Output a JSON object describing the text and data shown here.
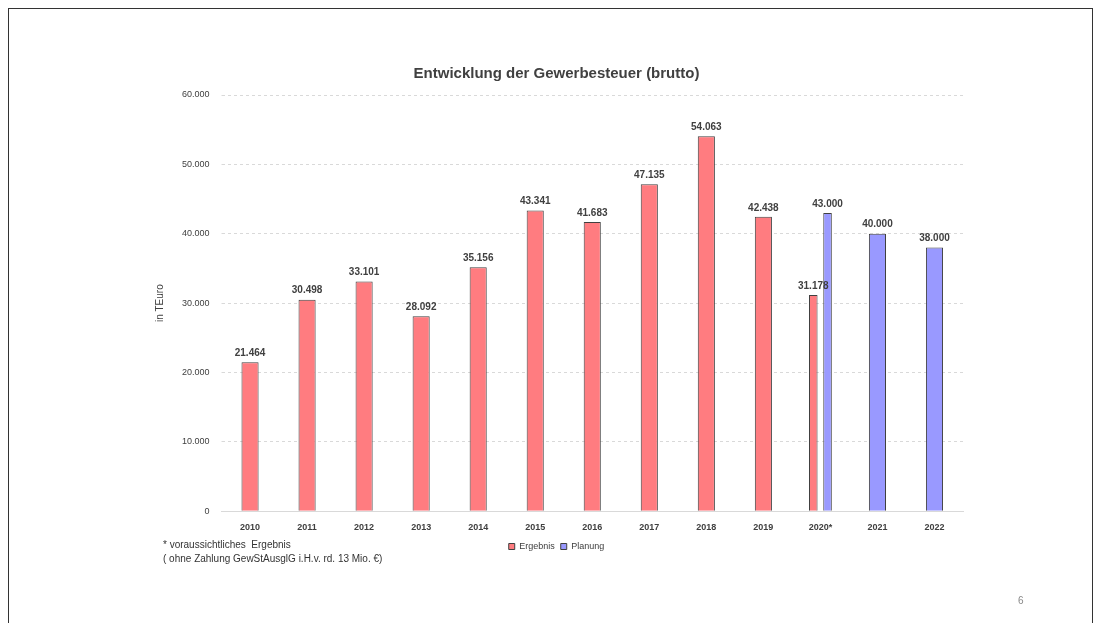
{
  "chart_data": {
    "type": "bar",
    "title": "Entwicklung der Gewerbesteuer (brutto)",
    "ylabel": "in TEuro",
    "categories": [
      "2010",
      "2011",
      "2012",
      "2013",
      "2014",
      "2015",
      "2016",
      "2017",
      "2018",
      "2019",
      "2020*",
      "2021",
      "2022"
    ],
    "series": [
      {
        "name": "Ergebnis",
        "color": "#ff7c80",
        "values": [
          21464,
          30498,
          33101,
          28092,
          35156,
          43341,
          41683,
          47135,
          54063,
          42438,
          31178,
          null,
          null
        ],
        "value_labels": [
          "21.464",
          "30.498",
          "33.101",
          "28.092",
          "35.156",
          "43.341",
          "41.683",
          "47.135",
          "54.063",
          "42.438",
          "31.178",
          null,
          null
        ]
      },
      {
        "name": "Planung",
        "color": "#9999ff",
        "values": [
          null,
          null,
          null,
          null,
          null,
          null,
          null,
          null,
          null,
          null,
          43000,
          40000,
          38000
        ],
        "value_labels": [
          null,
          null,
          null,
          null,
          null,
          null,
          null,
          null,
          null,
          null,
          "43.000",
          "40.000",
          "38.000"
        ]
      }
    ],
    "ylim": [
      0,
      60000
    ],
    "yticks": [
      0,
      {
        "value": 10000,
        "label": "10.000"
      },
      {
        "value": 20000,
        "label": "20.000"
      },
      {
        "value": 30000,
        "label": "30.000"
      },
      {
        "value": 40000,
        "label": "40.000"
      },
      {
        "value": 50000,
        "label": "50.000"
      },
      {
        "value": 60000,
        "label": "60.000"
      }
    ],
    "grid": "y",
    "legend": "bottom",
    "annotations": [
      "* voraussichtliches  Ergebnis",
      "( ohne Zahlung GewStAusglG i.H.v. rd. 13 Mio. €)",
      "6"
    ]
  }
}
